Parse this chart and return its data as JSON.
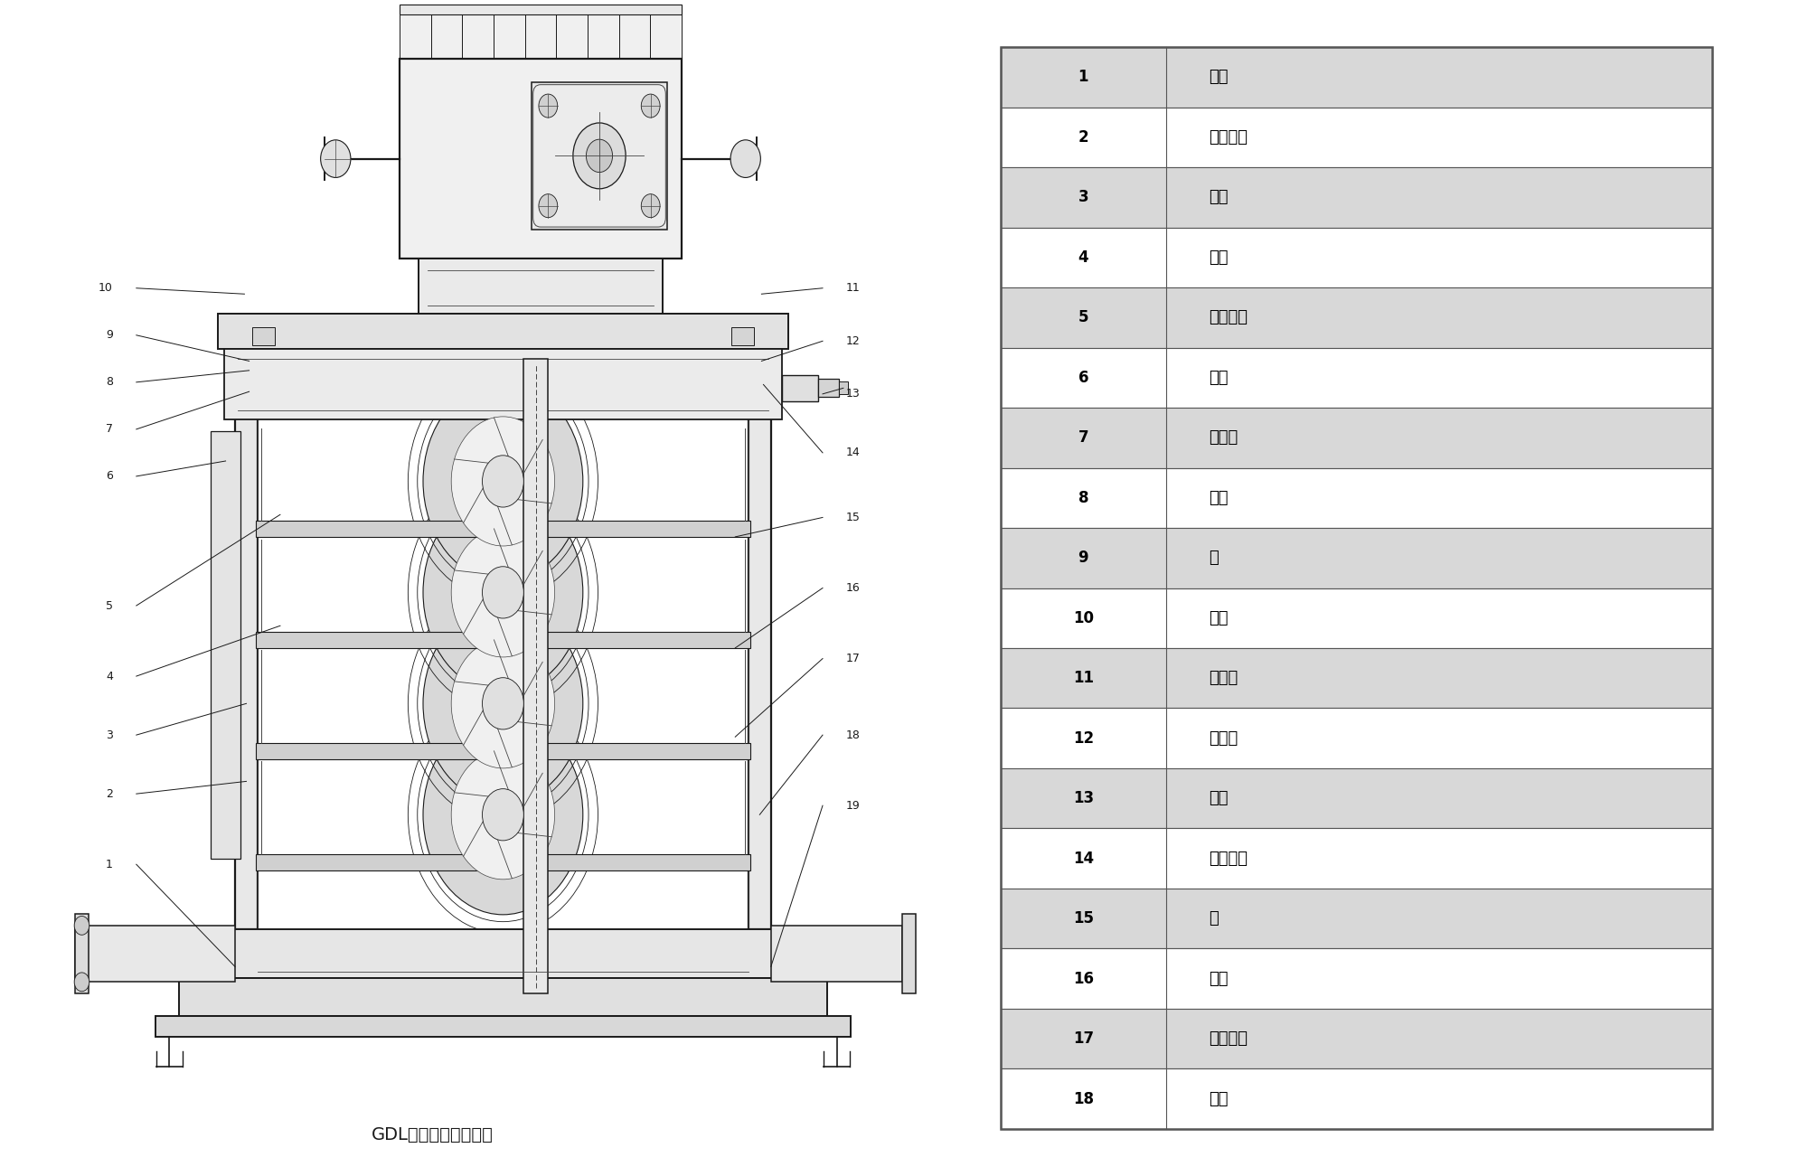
{
  "title": "GDL型多级管道离心泵",
  "bg_color": "#ffffff",
  "table_data": [
    [
      "1",
      "泵体"
    ],
    [
      "2",
      "拉紧螺栓"
    ],
    [
      "3",
      "外筒"
    ],
    [
      "4",
      "叶轮"
    ],
    [
      "5",
      "叶轮挡套"
    ],
    [
      "6",
      "轴套"
    ],
    [
      "7",
      "密封垫"
    ],
    [
      "8",
      "螺母"
    ],
    [
      "9",
      "销"
    ],
    [
      "10",
      "电机"
    ],
    [
      "11",
      "联轴器"
    ],
    [
      "12",
      "联接座"
    ],
    [
      "13",
      "气嘴"
    ],
    [
      "14",
      "机械密封"
    ],
    [
      "15",
      "轴"
    ],
    [
      "16",
      "中段"
    ],
    [
      "17",
      "轴套螺母"
    ],
    [
      "18",
      "轴瓦"
    ]
  ],
  "table_border_color": "#555555",
  "table_row_bg_odd": "#d8d8d8",
  "table_row_bg_even": "#ffffff",
  "table_text_color": "#000000",
  "lc": "#1a1a1a",
  "lc2": "#444444",
  "diagram_caption": "GDL型多级管道离心泵",
  "diagram_caption_fontsize": 14,
  "label_fontsize": 9,
  "table_num_fontsize": 12,
  "table_name_fontsize": 13
}
